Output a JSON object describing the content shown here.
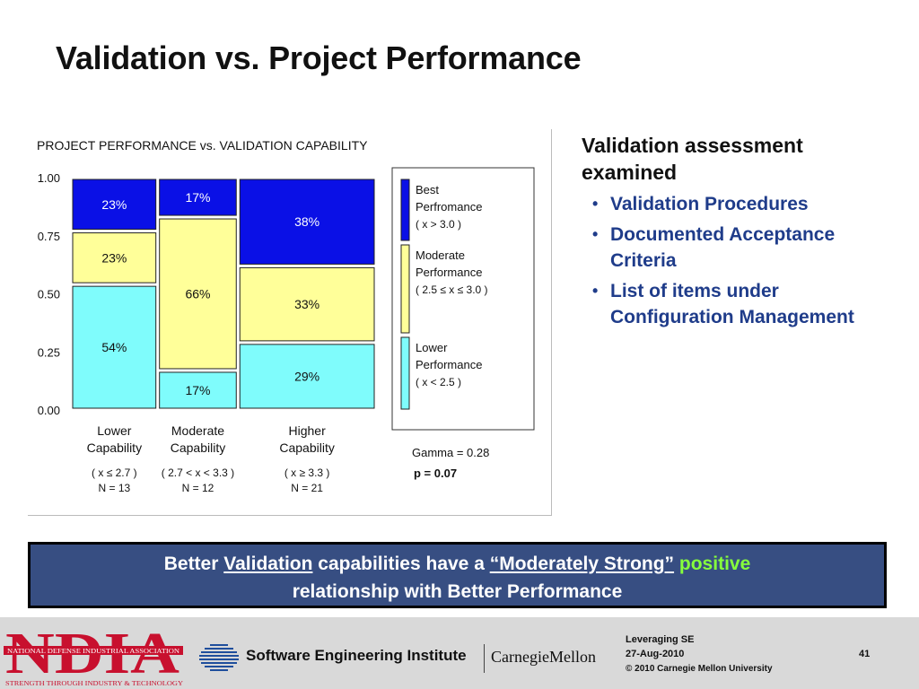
{
  "slide": {
    "title": "Validation vs. Project Performance"
  },
  "chart_data": {
    "type": "bar",
    "subtype": "stacked-100-percent",
    "title": "PROJECT PERFORMANCE vs. VALIDATION CAPABILITY",
    "ylim": [
      0,
      1
    ],
    "y_ticks": [
      "0.00",
      "0.25",
      "0.50",
      "0.75",
      "1.00"
    ],
    "categories": [
      {
        "label": "Lower Capability",
        "line1": "Lower",
        "line2": "Capability",
        "range": "( x ≤ 2.7 )",
        "n": "N = 13"
      },
      {
        "label": "Moderate Capability",
        "line1": "Moderate",
        "line2": "Capability",
        "range": "( 2.7 < x < 3.3 )",
        "n": "N = 12"
      },
      {
        "label": "Higher Capability",
        "line1": "Higher",
        "line2": "Capability",
        "range": "( x ≥ 3.3 )",
        "n": "N = 21"
      }
    ],
    "series": [
      {
        "name": "Lower Performance",
        "color": "#7ffcfc",
        "values": [
          0.54,
          0.17,
          0.29
        ],
        "labels": [
          "54%",
          "17%",
          "29%"
        ]
      },
      {
        "name": "Moderate Performance",
        "color": "#ffff99",
        "values": [
          0.23,
          0.66,
          0.33
        ],
        "labels": [
          "23%",
          "66%",
          "33%"
        ]
      },
      {
        "name": "Best Perfromance",
        "color": "#0a10e6",
        "values": [
          0.23,
          0.17,
          0.38
        ],
        "labels": [
          "23%",
          "17%",
          "38%"
        ]
      }
    ],
    "widths_by_n": [
      13,
      12,
      21
    ],
    "legend": [
      {
        "line1": "Best",
        "line2": "Perfromance",
        "line3": "( x > 3.0 )",
        "color": "#0a10e6"
      },
      {
        "line1": "Moderate",
        "line2": "Performance",
        "line3": "( 2.5 ≤ x ≤ 3.0 )",
        "color": "#ffff99"
      },
      {
        "line1": "Lower",
        "line2": "Performance",
        "line3": "( x < 2.5 )",
        "color": "#7ffcfc"
      }
    ],
    "legend_placement": "right",
    "stats": {
      "gamma": "Gamma =  0.28",
      "p": "p = 0.07"
    },
    "grid": false
  },
  "right_panel": {
    "heading": "Validation assessment examined",
    "items": [
      "Validation Procedures",
      "Documented Acceptance Criteria",
      "List of items under Configuration Management"
    ]
  },
  "banner": {
    "part1": "Better ",
    "part2": "Validation",
    "part3": " capabilities have a ",
    "part4": "“Moderately Strong”",
    "part5": " ",
    "part6": "positive",
    "part7": "relationship with Better Performance"
  },
  "footer": {
    "ndia_logo": "NDIA",
    "ndia_name": "NATIONAL DEFENSE INDUSTRIAL ASSOCIATION",
    "ndia_tagline": "STRENGTH THROUGH INDUSTRY & TECHNOLOGY",
    "sei": "Software Engineering Institute",
    "cmu": "CarnegieMellon",
    "event": "Leveraging SE",
    "date": "27-Aug-2010",
    "copyright": "© 2010 Carnegie Mellon University",
    "page": "41"
  }
}
